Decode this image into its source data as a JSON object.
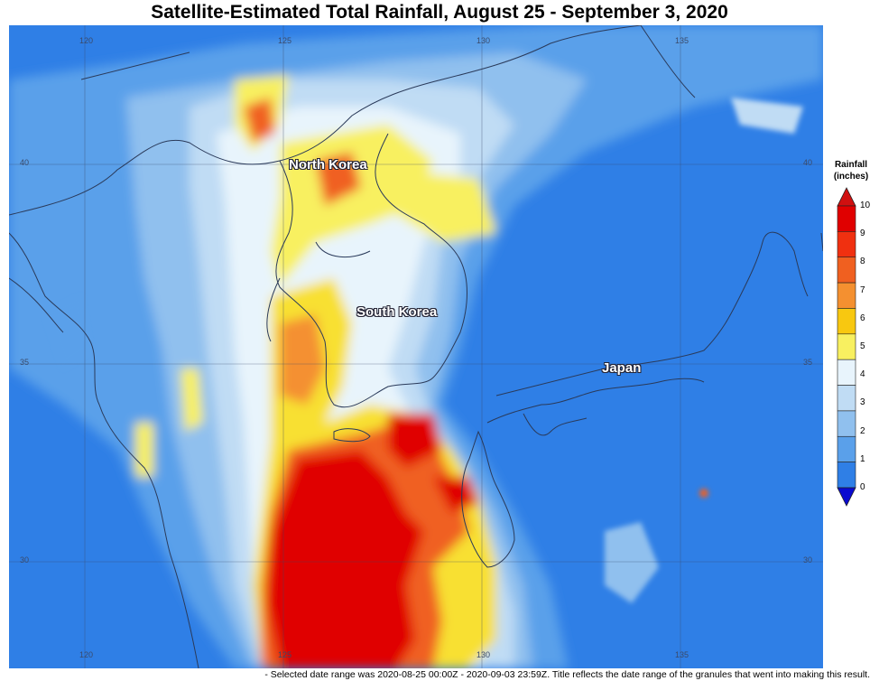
{
  "title": "Satellite-Estimated Total Rainfall, August 25 - September 3, 2020",
  "longitude_labels": [
    "120",
    "125",
    "130",
    "135"
  ],
  "latitude_labels": [
    "40",
    "35",
    "30"
  ],
  "regions": {
    "north_korea": "North Korea",
    "south_korea": "South Korea",
    "japan": "Japan"
  },
  "legend": {
    "title_line1": "Rainfall",
    "title_line2": "(inches)",
    "ticks": [
      "10",
      "9",
      "8",
      "7",
      "6",
      "5",
      "4",
      "3",
      "2",
      "1",
      "0"
    ],
    "colors": [
      "#e00000",
      "#f03010",
      "#f06020",
      "#f49030",
      "#f8c810",
      "#f8f060",
      "#e8f4fc",
      "#c0dcf4",
      "#90c0ee",
      "#5aa0ea",
      "#2f7fe6"
    ],
    "over_color": "#d01010",
    "under_color": "#0a0ad0"
  },
  "footer": "- Selected date range was 2020-08-25 00:00Z - 2020-09-03 23:59Z. Title reflects the date range of the granules that went into making this result."
}
